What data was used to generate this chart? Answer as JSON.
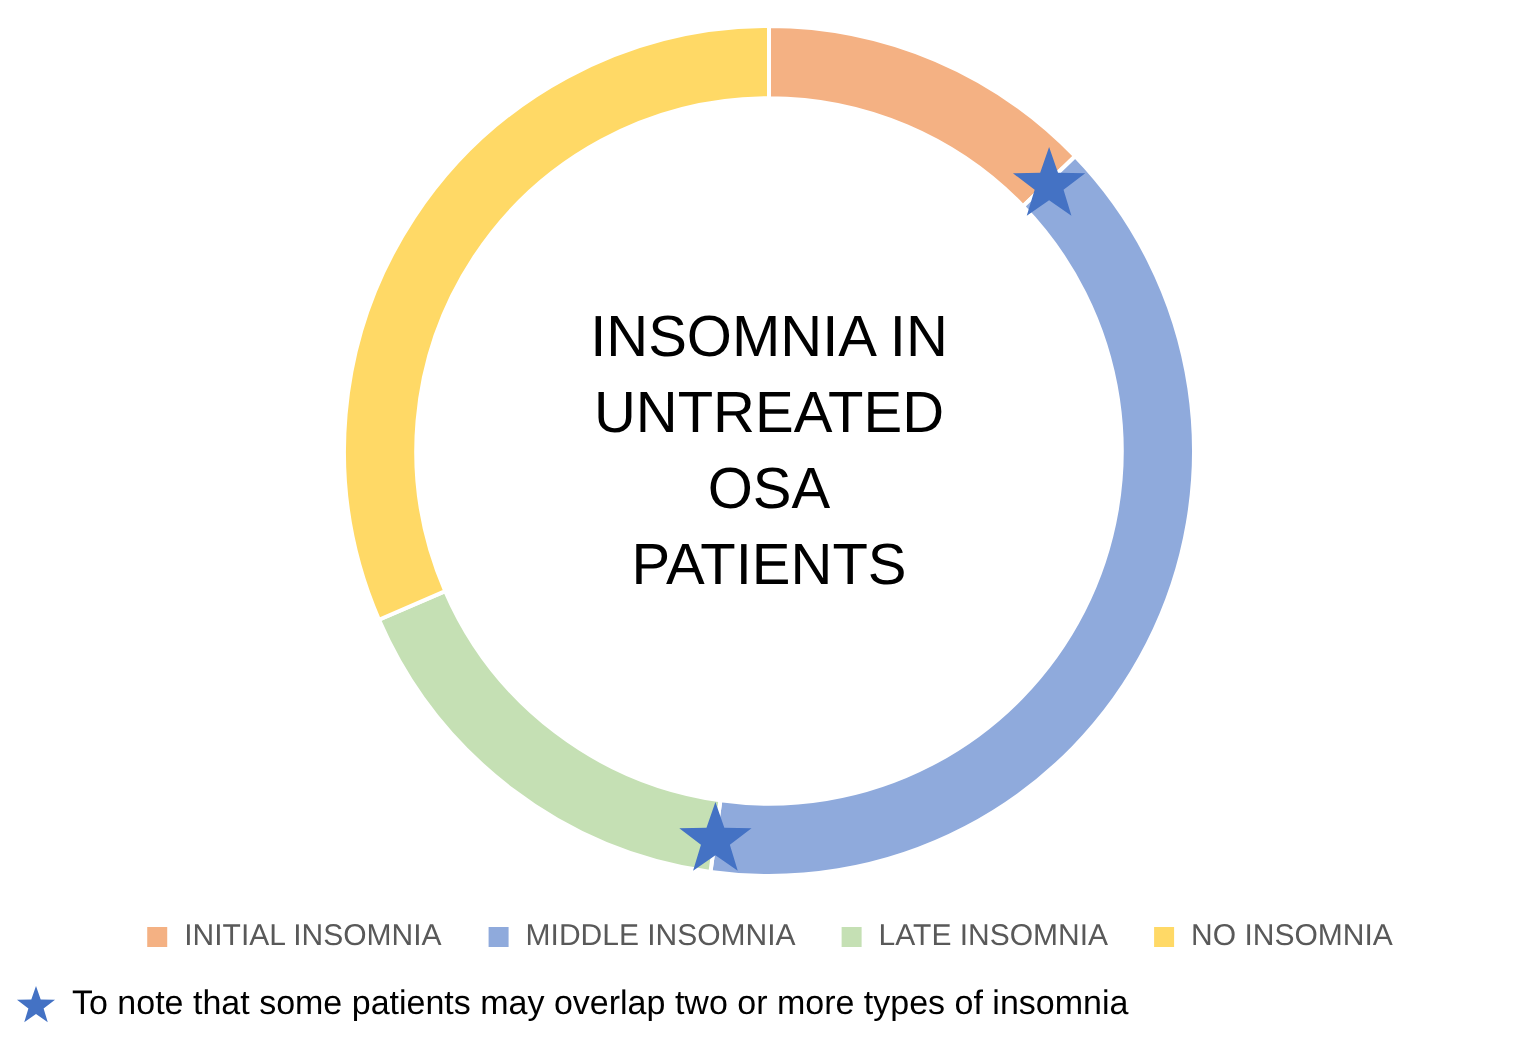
{
  "chart_data": {
    "type": "donut",
    "title": "INSOMNIA IN UNTREATED OSA PATIENTS",
    "categories": [
      "INITIAL INSOMNIA",
      "MIDDLE INSOMNIA",
      "LATE INSOMNIA",
      "NO INSOMNIA"
    ],
    "values": [
      12.8,
      39.4,
      16.3,
      31.5
    ],
    "colors": [
      "#f4b183",
      "#8faadc",
      "#c5e0b4",
      "#ffd966"
    ],
    "legend": "bottom",
    "annotations": [
      "To note that some patients may overlap two or more types of insomnia"
    ]
  }
}
